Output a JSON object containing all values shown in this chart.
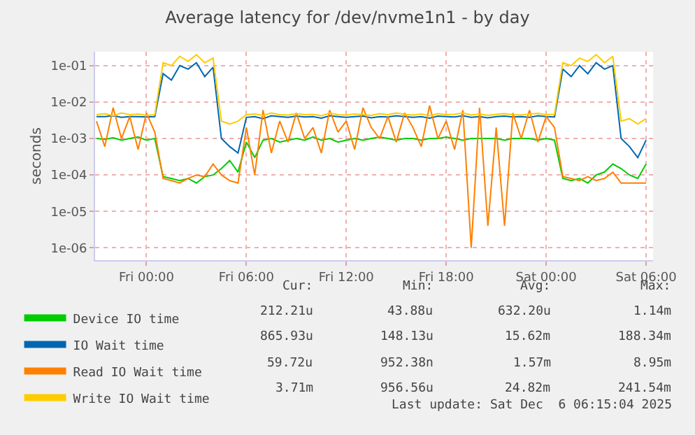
{
  "chart_data": {
    "type": "line",
    "title": "Average latency for /dev/nvme1n1 - by day",
    "ylabel": "seconds",
    "x": [
      "2025-12-04T21:00",
      "2025-12-04T21:30",
      "2025-12-04T22:00",
      "2025-12-04T22:30",
      "2025-12-04T23:00",
      "2025-12-04T23:30",
      "2025-12-05T00:00",
      "2025-12-05T00:30",
      "2025-12-05T01:00",
      "2025-12-05T01:30",
      "2025-12-05T02:00",
      "2025-12-05T02:30",
      "2025-12-05T03:00",
      "2025-12-05T03:30",
      "2025-12-05T04:00",
      "2025-12-05T04:30",
      "2025-12-05T05:00",
      "2025-12-05T05:30",
      "2025-12-05T06:00",
      "2025-12-05T06:30",
      "2025-12-05T07:00",
      "2025-12-05T07:30",
      "2025-12-05T08:00",
      "2025-12-05T08:30",
      "2025-12-05T09:00",
      "2025-12-05T09:30",
      "2025-12-05T10:00",
      "2025-12-05T10:30",
      "2025-12-05T11:00",
      "2025-12-05T11:30",
      "2025-12-05T12:00",
      "2025-12-05T12:30",
      "2025-12-05T13:00",
      "2025-12-05T13:30",
      "2025-12-05T14:00",
      "2025-12-05T14:30",
      "2025-12-05T15:00",
      "2025-12-05T15:30",
      "2025-12-05T16:00",
      "2025-12-05T16:30",
      "2025-12-05T17:00",
      "2025-12-05T17:30",
      "2025-12-05T18:00",
      "2025-12-05T18:30",
      "2025-12-05T19:00",
      "2025-12-05T19:30",
      "2025-12-05T20:00",
      "2025-12-05T20:30",
      "2025-12-05T21:00",
      "2025-12-05T21:30",
      "2025-12-05T22:00",
      "2025-12-05T22:30",
      "2025-12-05T23:00",
      "2025-12-05T23:30",
      "2025-12-06T00:00",
      "2025-12-06T00:30",
      "2025-12-06T01:00",
      "2025-12-06T01:30",
      "2025-12-06T02:00",
      "2025-12-06T02:30",
      "2025-12-06T03:00",
      "2025-12-06T03:30",
      "2025-12-06T04:00",
      "2025-12-06T04:30",
      "2025-12-06T05:00",
      "2025-12-06T05:30",
      "2025-12-06T06:00"
    ],
    "series": [
      {
        "name": "Device IO time",
        "color": "#00cc00",
        "values": [
          0.001,
          0.00095,
          0.00105,
          0.0009,
          0.001,
          0.0011,
          0.0009,
          0.001,
          9e-05,
          8e-05,
          7e-05,
          8e-05,
          6e-05,
          9e-05,
          0.0001,
          0.00015,
          0.00025,
          0.00012,
          0.0008,
          0.0003,
          0.0009,
          0.001,
          0.0008,
          0.0009,
          0.001,
          0.0009,
          0.0011,
          0.0009,
          0.001,
          0.0008,
          0.0009,
          0.001,
          0.0009,
          0.001,
          0.0011,
          0.001,
          0.0009,
          0.001,
          0.001,
          0.0009,
          0.001,
          0.001,
          0.0011,
          0.001,
          0.0009,
          0.001,
          0.001,
          0.001,
          0.001,
          0.0009,
          0.001,
          0.001,
          0.001,
          0.0009,
          0.001,
          0.0009,
          8e-05,
          7e-05,
          8e-05,
          6e-05,
          0.0001,
          0.00012,
          0.0002,
          0.00015,
          0.0001,
          8e-05,
          0.0002
        ]
      },
      {
        "name": "IO Wait time",
        "color": "#0066b3",
        "values": [
          0.004,
          0.004,
          0.0042,
          0.0038,
          0.004,
          0.004,
          0.0039,
          0.004,
          0.06,
          0.04,
          0.1,
          0.08,
          0.12,
          0.05,
          0.09,
          0.001,
          0.0006,
          0.0004,
          0.0038,
          0.004,
          0.0035,
          0.0042,
          0.004,
          0.0038,
          0.0041,
          0.0039,
          0.004,
          0.0036,
          0.0042,
          0.004,
          0.0038,
          0.004,
          0.0041,
          0.0037,
          0.004,
          0.0039,
          0.0042,
          0.004,
          0.0038,
          0.004,
          0.0036,
          0.0041,
          0.004,
          0.0039,
          0.0042,
          0.0038,
          0.004,
          0.0037,
          0.004,
          0.0041,
          0.0039,
          0.004,
          0.0038,
          0.0042,
          0.004,
          0.0039,
          0.08,
          0.05,
          0.1,
          0.06,
          0.12,
          0.08,
          0.1,
          0.001,
          0.0006,
          0.0003,
          0.0009
        ]
      },
      {
        "name": "Read IO Wait time",
        "color": "#ff8000",
        "values": [
          0.003,
          0.0006,
          0.007,
          0.001,
          0.004,
          0.0005,
          0.005,
          0.0015,
          8e-05,
          7e-05,
          6e-05,
          8e-05,
          0.0001,
          9e-05,
          0.0002,
          0.0001,
          7e-05,
          6e-05,
          0.002,
          0.0001,
          0.006,
          0.0004,
          0.003,
          0.0008,
          0.005,
          0.001,
          0.002,
          0.0004,
          0.006,
          0.0015,
          0.003,
          0.0005,
          0.007,
          0.002,
          0.001,
          0.004,
          0.0008,
          0.005,
          0.002,
          0.0006,
          0.008,
          0.001,
          0.003,
          0.0005,
          0.006,
          1e-06,
          0.007,
          4e-06,
          0.002,
          4e-06,
          0.005,
          0.001,
          0.006,
          0.0008,
          0.004,
          0.002,
          9e-05,
          8e-05,
          7e-05,
          9e-05,
          7e-05,
          8e-05,
          0.00012,
          6e-05,
          6e-05,
          6e-05,
          6e-05
        ]
      },
      {
        "name": "Write IO Wait time",
        "color": "#ffcc00",
        "values": [
          0.0045,
          0.0048,
          0.0042,
          0.005,
          0.0045,
          0.0047,
          0.0043,
          0.0045,
          0.12,
          0.1,
          0.18,
          0.13,
          0.2,
          0.12,
          0.16,
          0.003,
          0.0025,
          0.003,
          0.0045,
          0.0047,
          0.0043,
          0.005,
          0.0045,
          0.0044,
          0.0048,
          0.0045,
          0.0046,
          0.0042,
          0.005,
          0.0045,
          0.0044,
          0.0047,
          0.0045,
          0.0043,
          0.0048,
          0.0045,
          0.005,
          0.0046,
          0.0044,
          0.0047,
          0.0042,
          0.0048,
          0.0045,
          0.0046,
          0.005,
          0.0044,
          0.0047,
          0.0043,
          0.0046,
          0.0048,
          0.0045,
          0.0044,
          0.0047,
          0.0049,
          0.0045,
          0.0046,
          0.12,
          0.1,
          0.16,
          0.13,
          0.2,
          0.12,
          0.18,
          0.003,
          0.0035,
          0.0025,
          0.0035
        ]
      }
    ],
    "xlim": [
      "2025-12-04T20:55",
      "2025-12-06T06:25"
    ],
    "xticks": [
      {
        "value": "2025-12-05T00:00",
        "label": "Fri 00:00"
      },
      {
        "value": "2025-12-05T06:00",
        "label": "Fri 06:00"
      },
      {
        "value": "2025-12-05T12:00",
        "label": "Fri 12:00"
      },
      {
        "value": "2025-12-05T18:00",
        "label": "Fri 18:00"
      },
      {
        "value": "2025-12-06T00:00",
        "label": "Sat 00:00"
      },
      {
        "value": "2025-12-06T06:00",
        "label": "Sat 06:00"
      }
    ],
    "ylim": [
      4.6e-07,
      0.24
    ],
    "yticks": [
      {
        "value": 1e-06,
        "label": "1e-06"
      },
      {
        "value": 1e-05,
        "label": "1e-05"
      },
      {
        "value": 0.0001,
        "label": "1e-04"
      },
      {
        "value": 0.001,
        "label": "1e-03"
      },
      {
        "value": 0.01,
        "label": "1e-02"
      },
      {
        "value": 0.1,
        "label": "1e-01"
      }
    ],
    "log": "y",
    "grid": true,
    "legend": "bottom",
    "marker": "none",
    "line_style": "solid",
    "annotations": [
      "Cur:",
      "Min:",
      "Avg:",
      "Max:",
      "212.21u",
      "43.88u",
      "632.20u",
      "1.14m",
      "865.93u",
      "148.13u",
      "15.62m",
      "188.34m",
      "59.72u",
      "952.38n",
      "1.57m",
      "8.95m",
      "3.71m",
      "956.56u",
      "24.82m",
      "241.54m",
      "Last update: Sat Dec  6 06:15:04 2025"
    ]
  }
}
